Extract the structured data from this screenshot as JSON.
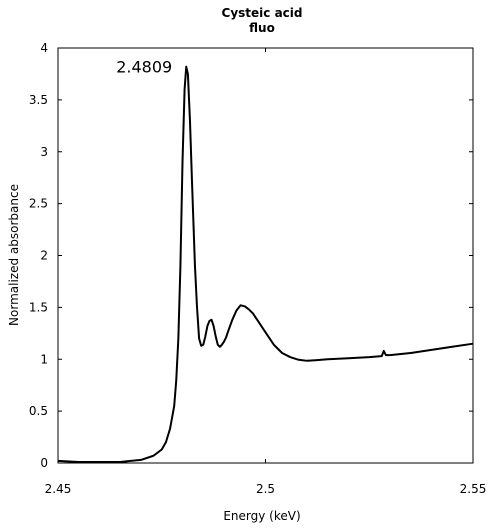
{
  "chart_data": {
    "type": "line",
    "title": "Cysteic acid",
    "subtitle": "fluo",
    "xlabel": "Energy (keV)",
    "ylabel": "Normalized absorbance",
    "xlim": [
      2.45,
      2.55
    ],
    "ylim": [
      0,
      4
    ],
    "x_ticks": [
      2.45,
      2.5,
      2.55
    ],
    "x_tick_labels": [
      "2.45",
      "2.5",
      "2.55"
    ],
    "y_ticks": [
      0,
      0.5,
      1,
      1.5,
      2,
      2.5,
      3,
      3.5,
      4
    ],
    "y_tick_labels": [
      "0",
      "0.5",
      "1",
      "1.5",
      "2",
      "2.5",
      "3",
      "3.5",
      "4"
    ],
    "grid": false,
    "annotation": {
      "text": "2.4809",
      "x": 2.4809,
      "y": 3.82
    },
    "series": [
      {
        "color": "#000000",
        "x": [
          2.45,
          2.455,
          2.46,
          2.465,
          2.47,
          2.473,
          2.475,
          2.476,
          2.477,
          2.478,
          2.4785,
          2.479,
          2.4795,
          2.48,
          2.4805,
          2.4809,
          2.4813,
          2.4818,
          2.4823,
          2.483,
          2.4835,
          2.484,
          2.4845,
          2.485,
          2.4855,
          2.486,
          2.4865,
          2.487,
          2.4875,
          2.488,
          2.4885,
          2.489,
          2.4895,
          2.49,
          2.4905,
          2.491,
          2.492,
          2.493,
          2.494,
          2.495,
          2.496,
          2.497,
          2.498,
          2.5,
          2.502,
          2.504,
          2.506,
          2.508,
          2.51,
          2.512,
          2.515,
          2.52,
          2.525,
          2.528,
          2.5285,
          2.529,
          2.53,
          2.535,
          2.54,
          2.545,
          2.55
        ],
        "y": [
          0.02,
          0.01,
          0.01,
          0.01,
          0.03,
          0.07,
          0.13,
          0.2,
          0.33,
          0.55,
          0.8,
          1.2,
          1.9,
          2.9,
          3.6,
          3.82,
          3.75,
          3.3,
          2.7,
          1.9,
          1.5,
          1.2,
          1.13,
          1.14,
          1.22,
          1.32,
          1.37,
          1.38,
          1.32,
          1.22,
          1.14,
          1.12,
          1.14,
          1.17,
          1.21,
          1.27,
          1.38,
          1.47,
          1.52,
          1.51,
          1.48,
          1.44,
          1.38,
          1.26,
          1.14,
          1.06,
          1.02,
          0.995,
          0.985,
          0.99,
          1.0,
          1.01,
          1.02,
          1.03,
          1.08,
          1.04,
          1.04,
          1.06,
          1.09,
          1.12,
          1.15
        ]
      }
    ]
  }
}
